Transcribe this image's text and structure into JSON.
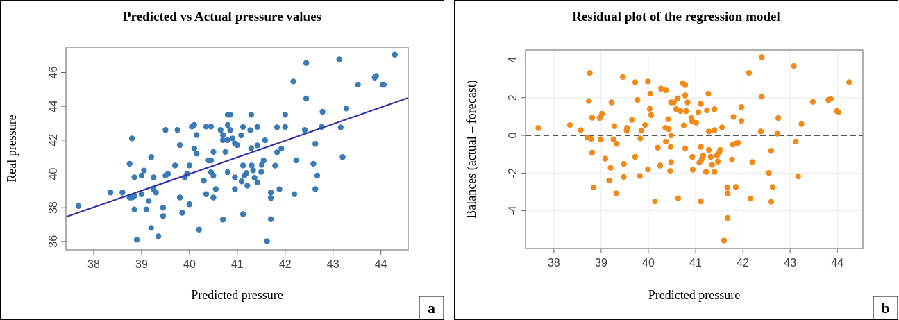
{
  "chart_data": [
    {
      "type": "scatter",
      "title": "Predicted vs Actual pressure values",
      "xlabel": "Predicted pressure",
      "ylabel": "Real pressure",
      "xlim": [
        37.42,
        44.57
      ],
      "ylim": [
        35.5,
        47.5
      ],
      "xticks": [
        38,
        39,
        40,
        41,
        42,
        43,
        44
      ],
      "yticks": [
        36,
        38,
        40,
        42,
        44,
        46
      ],
      "marker": "circle",
      "annotations": [
        "a"
      ],
      "series": [
        {
          "color": "#3a7ab5",
          "x": [
            37.68,
            38.35,
            38.6,
            38.75,
            38.8,
            38.85,
            38.75,
            38.8,
            38.85,
            38.85,
            38.9,
            39.0,
            39.05,
            39.0,
            39.1,
            39.15,
            39.2,
            39.25,
            39.25,
            39.3,
            39.2,
            39.35,
            39.45,
            39.45,
            39.5,
            39.5,
            39.55,
            39.7,
            39.75,
            39.8,
            39.8,
            39.85,
            39.9,
            39.95,
            40.0,
            40.05,
            40.1,
            40.0,
            40.1,
            40.15,
            40.15,
            40.2,
            40.3,
            40.35,
            40.45,
            40.35,
            40.4,
            40.45,
            40.45,
            40.5,
            40.5,
            40.5,
            40.55,
            40.65,
            40.7,
            40.7,
            40.8,
            40.7,
            40.8,
            40.85,
            40.8,
            40.85,
            40.75,
            40.8,
            40.9,
            40.95,
            41.0,
            40.95,
            40.95,
            42.44,
            43.13,
            44.29,
            42.17,
            42.44,
            43.52,
            43.87,
            43.9,
            44.03,
            44.06,
            43.28,
            42.78,
            43.16,
            42.76,
            42.41,
            42.63,
            43.2,
            42.23,
            42.59,
            42.67,
            42.63,
            42.19,
            42.0,
            42.0,
            41.83,
            41.92,
            41.83,
            41.79,
            41.88,
            41.7,
            41.7,
            41.7,
            41.62,
            41.58,
            41.55,
            41.51,
            41.5,
            41.42,
            41.42,
            41.29,
            41.27,
            41.29,
            41.12,
            41.08,
            41.3,
            41.12,
            41.33,
            41.19,
            41.15,
            41.09,
            41.21,
            41.42,
            41.36,
            41.12
          ],
          "values": [
            38.1,
            38.9,
            38.9,
            38.6,
            38.6,
            38.7,
            40.6,
            42.1,
            39.8,
            37.9,
            36.1,
            39.9,
            40.2,
            38.8,
            37.9,
            38.4,
            41.0,
            39.8,
            39.1,
            38.9,
            36.8,
            36.3,
            38.0,
            37.5,
            42.6,
            39.9,
            40.0,
            40.5,
            42.6,
            41.7,
            38.6,
            37.7,
            39.8,
            40.0,
            40.5,
            42.8,
            42.9,
            38.2,
            41.5,
            42.3,
            41.2,
            36.7,
            39.6,
            42.8,
            42.8,
            38.8,
            40.8,
            40.8,
            40.1,
            39.9,
            41.3,
            38.6,
            39.1,
            42.6,
            42.3,
            42.0,
            42.0,
            37.3,
            43.5,
            43.5,
            42.9,
            42.6,
            41.3,
            40.1,
            42.1,
            41.8,
            41.7,
            39.8,
            39.1,
            46.57,
            46.78,
            47.06,
            45.47,
            44.46,
            45.28,
            45.7,
            45.8,
            45.28,
            45.28,
            43.87,
            43.68,
            42.75,
            42.78,
            42.6,
            41.78,
            41.0,
            40.8,
            40.6,
            39.9,
            39.1,
            38.8,
            43.5,
            42.78,
            42.76,
            41.5,
            41.28,
            40.49,
            39.09,
            38.9,
            38.57,
            37.32,
            36.02,
            41.99,
            40.79,
            40.53,
            40.12,
            41.69,
            42.78,
            43.5,
            42.59,
            41.52,
            42.78,
            42.28,
            40.5,
            40.5,
            40.21,
            40.05,
            39.91,
            39.56,
            39.3,
            39.5,
            39.77,
            37.62
          ]
        },
        {
          "type": "line",
          "marker": "none",
          "color": "#3535a8",
          "x": [
            37.42,
            44.57
          ],
          "values": [
            37.45,
            44.5
          ]
        }
      ]
    },
    {
      "type": "scatter",
      "title": "Residual plot of the regression model",
      "xlabel": "Predicted pressure",
      "ylabel": "Balances (actual – forecast)",
      "xlim": [
        37.4,
        44.54
      ],
      "ylim": [
        -6.0,
        4.53
      ],
      "xticks": [
        38,
        39,
        40,
        41,
        42,
        43,
        44
      ],
      "yticks": [
        -4,
        -2,
        0,
        2,
        4
      ],
      "grid": true,
      "marker": "circle",
      "annotations": [
        "b"
      ],
      "ref_lines": [
        {
          "axis": "y",
          "value": 0,
          "color": "#555555",
          "line_style": "dashed"
        }
      ],
      "series": [
        {
          "color": "#f28a1a",
          "x": [
            37.67,
            38.76,
            39.46,
            39.72,
            39.99,
            40.04,
            40.27,
            40.37,
            38.74,
            39.77,
            39.22,
            40.48,
            40.03,
            40.06,
            38.81,
            38.97,
            39.02,
            39.65,
            40.42,
            38.34,
            38.57,
            39.28,
            39.55,
            39.54,
            39.93,
            39.85,
            40.36,
            40.43,
            38.71,
            38.79,
            38.99,
            39.26,
            39.33,
            39.83,
            40.48,
            40.37,
            38.81,
            40.2,
            40.47,
            39.09,
            39.72,
            40.48,
            39.2,
            39.48,
            40.25,
            39.99,
            40.46,
            39.48,
            39.82,
            39.17,
            38.84,
            39.32,
            40.14,
            42.4,
            43.08,
            42.13,
            44.25,
            40.73,
            40.78,
            41.27,
            42.4,
            40.78,
            40.54,
            40.62,
            40.83,
            41.11,
            43.48,
            43.81,
            43.86,
            41.97,
            40.59,
            40.68,
            40.8,
            41.06,
            41.24,
            41.4,
            43.99,
            44.02,
            41.8,
            41.97,
            42.75,
            40.91,
            40.93,
            41.01,
            43.24,
            40.75,
            41.56,
            41.28,
            41.4,
            42.38,
            42.73,
            43.12,
            41.79,
            41.85,
            41.9,
            40.78,
            41.11,
            41.28,
            41.52,
            41.5,
            41.45,
            42.6,
            40.93,
            41.16,
            41.13,
            41.08,
            41.32,
            41.35,
            41.47,
            41.77,
            42.2,
            40.94,
            41.22,
            41.4,
            42.55,
            43.17,
            41.67,
            41.68,
            41.85,
            42.63,
            40.63,
            41.11,
            42.16,
            42.6,
            41.68,
            41.6
          ],
          "values": [
            0.39,
            3.31,
            3.1,
            2.82,
            2.86,
            2.21,
            2.48,
            2.39,
            1.82,
            1.88,
            1.75,
            1.75,
            1.41,
            1.08,
            0.94,
            0.92,
            1.14,
            0.82,
            0.86,
            0.55,
            0.28,
            0.49,
            0.4,
            0.25,
            0.55,
            0.25,
            0.4,
            0.33,
            -0.12,
            -0.18,
            -0.21,
            -0.21,
            -0.45,
            -0.16,
            0.0,
            -0.33,
            -0.92,
            -0.65,
            -0.61,
            -1.23,
            -1.14,
            -1.41,
            -1.72,
            -1.51,
            -1.6,
            -1.8,
            -1.88,
            -2.21,
            -2.15,
            -2.39,
            -2.76,
            -3.07,
            -3.5,
            4.15,
            3.68,
            3.31,
            2.82,
            2.76,
            2.67,
            2.21,
            2.05,
            2.12,
            1.75,
            1.96,
            1.75,
            1.68,
            1.78,
            1.88,
            1.93,
            1.5,
            1.39,
            1.29,
            1.29,
            1.23,
            1.33,
            1.39,
            1.29,
            1.23,
            0.98,
            0.77,
            0.92,
            0.92,
            0.74,
            0.67,
            0.61,
            0.53,
            0.43,
            0.21,
            0.28,
            0.21,
            0.09,
            -0.33,
            -0.49,
            -0.43,
            -0.39,
            -0.7,
            -0.61,
            -0.77,
            -0.77,
            -0.92,
            -1.07,
            -0.82,
            -1.14,
            -1.07,
            -1.26,
            -1.44,
            -1.14,
            -1.56,
            -1.39,
            -1.29,
            -1.41,
            -1.82,
            -1.93,
            -1.93,
            -1.99,
            -2.17,
            -2.76,
            -3.07,
            -2.74,
            -2.74,
            -3.34,
            -3.5,
            -3.35,
            -3.52,
            -4.38,
            -5.58
          ]
        }
      ]
    }
  ]
}
